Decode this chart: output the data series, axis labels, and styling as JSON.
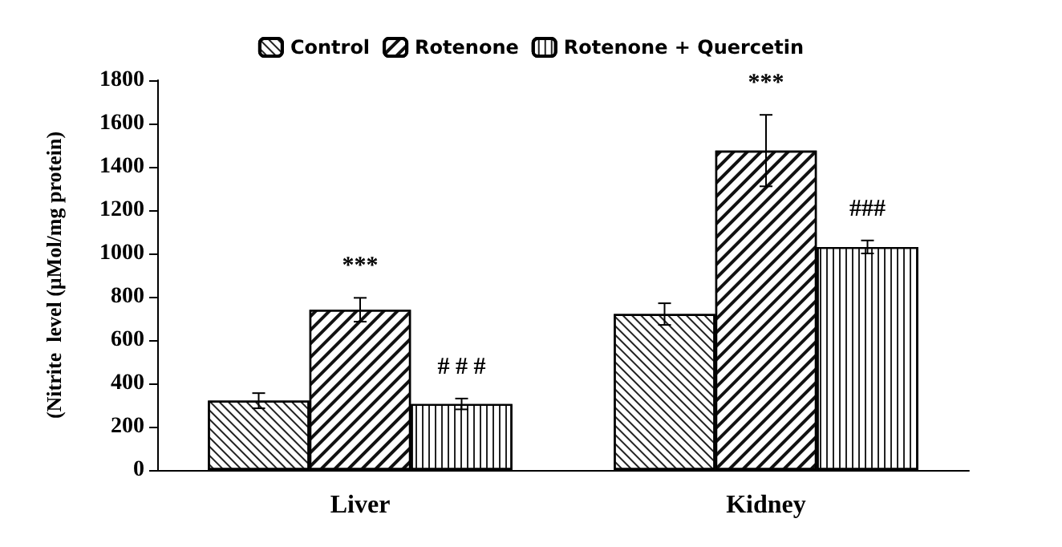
{
  "chart_data": {
    "type": "bar",
    "ylabel": "(Nitrite  level (µMol/mg protein)",
    "categories": [
      "Liver",
      "Kidney"
    ],
    "series": [
      {
        "name": "Control",
        "color": "#ffffff",
        "values": [
          320,
          720
        ],
        "errors": [
          35,
          50
        ]
      },
      {
        "name": "Rotenone",
        "color": "#ffffff",
        "values": [
          740,
          1475
        ],
        "errors": [
          55,
          165
        ]
      },
      {
        "name": "Rotenone + Quercetin",
        "color": "#ffffff",
        "values": [
          305,
          1030
        ],
        "errors": [
          25,
          30
        ]
      }
    ],
    "annotations": [
      {
        "text": "***",
        "x": "Liver",
        "y": 740
      },
      "# # #",
      {
        "text": "***",
        "x": "Kidney",
        "y": 1475
      },
      "###"
    ],
    "ylim": [
      0,
      1800
    ],
    "yticks": [
      0,
      200,
      400,
      600,
      800,
      1000,
      1200,
      1400,
      1600,
      1800
    ],
    "grid": false,
    "legend": "top"
  }
}
